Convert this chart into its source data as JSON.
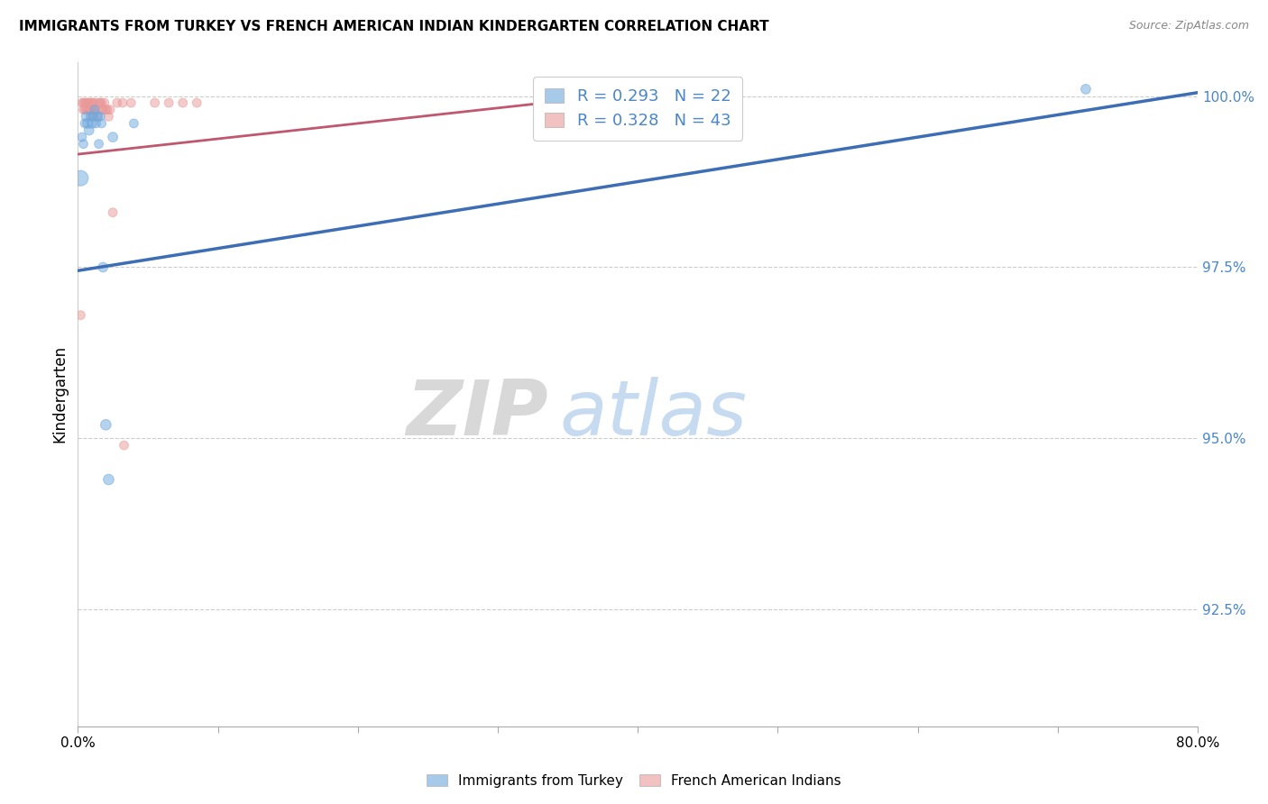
{
  "title": "IMMIGRANTS FROM TURKEY VS FRENCH AMERICAN INDIAN KINDERGARTEN CORRELATION CHART",
  "source": "Source: ZipAtlas.com",
  "ylabel": "Kindergarten",
  "ytick_labels": [
    "100.0%",
    "97.5%",
    "95.0%",
    "92.5%"
  ],
  "ytick_values": [
    1.0,
    0.975,
    0.95,
    0.925
  ],
  "xlim": [
    0.0,
    0.8
  ],
  "ylim": [
    0.908,
    1.005
  ],
  "legend_r_blue": "R = 0.293",
  "legend_n_blue": "N = 22",
  "legend_r_pink": "R = 0.328",
  "legend_n_pink": "N = 43",
  "legend_label_blue": "Immigrants from Turkey",
  "legend_label_pink": "French American Indians",
  "blue_color": "#6fa8dc",
  "pink_color": "#ea9999",
  "blue_line_color": "#3d6eb5",
  "pink_line_color": "#c0576e",
  "watermark_zip": "ZIP",
  "watermark_atlas": "atlas",
  "blue_scatter_x": [
    0.002,
    0.003,
    0.004,
    0.005,
    0.006,
    0.007,
    0.008,
    0.009,
    0.01,
    0.011,
    0.012,
    0.013,
    0.014,
    0.015,
    0.016,
    0.017,
    0.018,
    0.02,
    0.022,
    0.025,
    0.04,
    0.72
  ],
  "blue_scatter_y": [
    0.988,
    0.994,
    0.993,
    0.996,
    0.997,
    0.996,
    0.995,
    0.997,
    0.996,
    0.997,
    0.998,
    0.996,
    0.997,
    0.993,
    0.997,
    0.996,
    0.975,
    0.952,
    0.944,
    0.994,
    0.996,
    1.001
  ],
  "blue_scatter_sizes": [
    150,
    50,
    50,
    50,
    60,
    60,
    60,
    50,
    60,
    50,
    50,
    50,
    60,
    50,
    50,
    50,
    60,
    70,
    70,
    60,
    50,
    60
  ],
  "pink_scatter_x": [
    0.002,
    0.003,
    0.004,
    0.004,
    0.005,
    0.005,
    0.006,
    0.006,
    0.007,
    0.007,
    0.008,
    0.008,
    0.009,
    0.009,
    0.01,
    0.01,
    0.01,
    0.011,
    0.011,
    0.012,
    0.013,
    0.014,
    0.015,
    0.016,
    0.017,
    0.017,
    0.018,
    0.019,
    0.02,
    0.021,
    0.022,
    0.023,
    0.025,
    0.028,
    0.032,
    0.033,
    0.038,
    0.055,
    0.065,
    0.075,
    0.085,
    0.37,
    0.42
  ],
  "pink_scatter_y": [
    0.968,
    0.999,
    0.999,
    0.998,
    0.999,
    0.998,
    0.999,
    0.998,
    0.999,
    0.998,
    0.999,
    0.998,
    0.999,
    0.998,
    0.999,
    0.998,
    0.997,
    0.999,
    0.998,
    0.999,
    0.998,
    0.997,
    0.999,
    0.999,
    0.999,
    0.998,
    0.998,
    0.999,
    0.998,
    0.998,
    0.997,
    0.998,
    0.983,
    0.999,
    0.999,
    0.949,
    0.999,
    0.999,
    0.999,
    0.999,
    0.999,
    1.001,
    1.001
  ],
  "pink_scatter_sizes": [
    50,
    50,
    50,
    50,
    50,
    50,
    50,
    50,
    50,
    50,
    50,
    50,
    50,
    50,
    50,
    50,
    50,
    50,
    50,
    50,
    50,
    50,
    50,
    50,
    50,
    50,
    50,
    50,
    50,
    50,
    50,
    50,
    50,
    50,
    50,
    50,
    50,
    50,
    50,
    50,
    50,
    50,
    50
  ],
  "blue_trendline_x": [
    0.0,
    0.8
  ],
  "blue_trendline_y": [
    0.9745,
    1.0005
  ],
  "pink_trendline_x": [
    0.0,
    0.4
  ],
  "pink_trendline_y": [
    0.9915,
    1.0005
  ],
  "grid_color": "#cccccc",
  "background_color": "#ffffff"
}
